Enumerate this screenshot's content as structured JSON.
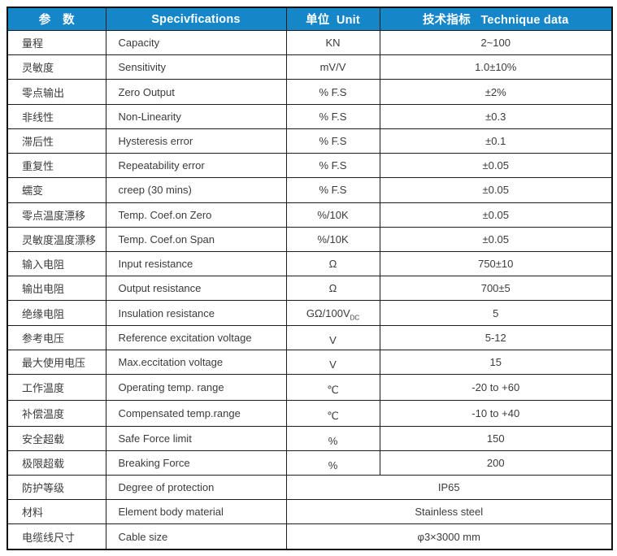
{
  "colors": {
    "header_bg": "#1586C8",
    "header_text": "#FFFFFF",
    "body_text": "#3B3B3B",
    "border": "#1C1C1C"
  },
  "header": {
    "col_param": "参　数",
    "col_spec": "Specivfications",
    "col_unit": "单位  Unit",
    "col_data": "技术指标   Technique data"
  },
  "rows": [
    {
      "param": "量程",
      "spec": "Capacity",
      "unit": "KN",
      "value": "2~100"
    },
    {
      "param": "灵敏度",
      "spec": "Sensitivity",
      "unit": "mV/V",
      "value": "1.0±10%"
    },
    {
      "param": "零点输出",
      "spec": "Zero Output",
      "unit": "% F.S",
      "value": "±2%"
    },
    {
      "param": "非线性",
      "spec": "Non-Linearity",
      "unit": "% F.S",
      "value": "±0.3"
    },
    {
      "param": "滞后性",
      "spec": "Hysteresis error",
      "unit": "% F.S",
      "value": "±0.1"
    },
    {
      "param": "重复性",
      "spec": "Repeatability error",
      "unit": "% F.S",
      "value": "±0.05"
    },
    {
      "param": "蠕变",
      "spec": "creep (30 mins)",
      "unit": "% F.S",
      "value": "±0.05"
    },
    {
      "param": "零点温度漂移",
      "spec": "Temp. Coef.on Zero",
      "unit": "%/10K",
      "value": "±0.05"
    },
    {
      "param": "灵敏度温度漂移",
      "spec": "Temp. Coef.on Span",
      "unit": "%/10K",
      "value": "±0.05"
    },
    {
      "param": "输入电阻",
      "spec": "Input resistance",
      "unit": "Ω",
      "value": "750±10"
    },
    {
      "param": "输出电阻",
      "spec": "Output resistance",
      "unit": "Ω",
      "value": "700±5"
    },
    {
      "param": "绝缘电阻",
      "spec": "Insulation resistance",
      "unit": "GΩ/100V",
      "unit_sub": "DC",
      "value": "5"
    },
    {
      "param": "参考电压",
      "spec": "Reference excitation voltage",
      "unit": "V",
      "value": "5-12"
    },
    {
      "param": "最大使用电压",
      "spec": "Max.eccitation voltage",
      "unit": "V",
      "value": "15"
    },
    {
      "param": "工作温度",
      "spec": "Operating temp. range",
      "unit": "℃",
      "value": "-20 to +60"
    },
    {
      "param": "补偿温度",
      "spec": "Compensated temp.range",
      "unit": "℃",
      "value": "-10 to +40"
    },
    {
      "param": "安全超载",
      "spec": "Safe Force limit",
      "unit": "%",
      "value": "150"
    },
    {
      "param": "极限超载",
      "spec": "Breaking Force",
      "unit": "%",
      "value": "200"
    },
    {
      "param": "防护等级",
      "spec": "Degree of protection",
      "merged": true,
      "value": "IP65"
    },
    {
      "param": "材料",
      "spec": "Element body material",
      "merged": true,
      "value": "Stainless steel"
    },
    {
      "param": "电缆线尺寸",
      "spec": "Cable size",
      "merged": true,
      "value": "φ3×3000 mm"
    }
  ]
}
